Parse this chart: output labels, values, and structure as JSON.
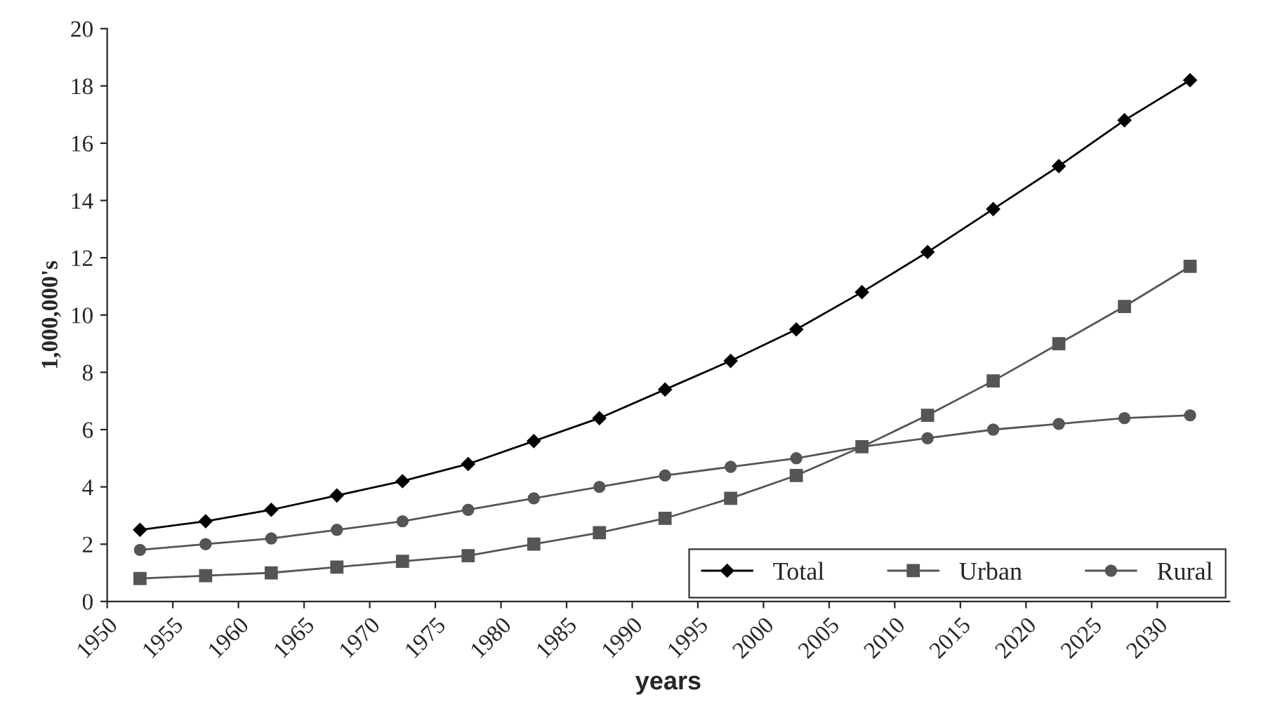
{
  "chart_data": {
    "type": "line",
    "xlabel": "years",
    "ylabel": "1,000,000's",
    "x": [
      1952.5,
      1957.5,
      1962.5,
      1967.5,
      1972.5,
      1977.5,
      1982.5,
      1987.5,
      1992.5,
      1997.5,
      2002.5,
      2007.5,
      2012.5,
      2017.5,
      2022.5,
      2027.5,
      2032.5
    ],
    "series": [
      {
        "name": "Total",
        "color": "#000000",
        "marker": "diamond",
        "values": [
          2.5,
          2.8,
          3.2,
          3.7,
          4.2,
          4.8,
          5.6,
          6.4,
          7.4,
          8.4,
          9.5,
          10.8,
          12.2,
          13.7,
          15.2,
          16.8,
          18.2
        ]
      },
      {
        "name": "Urban",
        "color": "#555555",
        "marker": "square",
        "values": [
          0.8,
          0.9,
          1.0,
          1.2,
          1.4,
          1.6,
          2.0,
          2.4,
          2.9,
          3.6,
          4.4,
          5.4,
          6.5,
          7.7,
          9.0,
          10.3,
          11.7
        ]
      },
      {
        "name": "Rural",
        "color": "#555555",
        "marker": "circle",
        "values": [
          1.8,
          2.0,
          2.2,
          2.5,
          2.8,
          3.2,
          3.6,
          4.0,
          4.4,
          4.7,
          5.0,
          5.4,
          5.7,
          6.0,
          6.2,
          6.4,
          6.5
        ]
      }
    ],
    "xlim": [
      1950,
      2035.5
    ],
    "xticks": [
      1950,
      1955,
      1960,
      1965,
      1970,
      1975,
      1980,
      1985,
      1990,
      1995,
      2000,
      2005,
      2010,
      2015,
      2020,
      2025,
      2030
    ],
    "ylim": [
      0,
      20
    ],
    "yticks": [
      0,
      2,
      4,
      6,
      8,
      10,
      12,
      14,
      16,
      18,
      20
    ],
    "grid": false,
    "legend": "bottom right",
    "line_style": "solid"
  }
}
